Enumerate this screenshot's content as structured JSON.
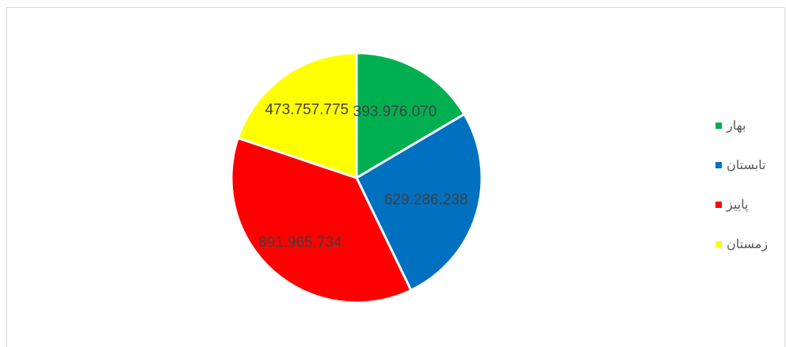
{
  "chart_data": {
    "type": "pie",
    "title": "",
    "categories": [
      "بهار",
      "تابستان",
      "پاییز",
      "زمستان"
    ],
    "values": [
      393976070,
      629286238,
      891965734,
      473757775
    ],
    "data_labels": [
      "393.976.070",
      "629.286.238",
      "891.965.734",
      "473.757.775"
    ],
    "colors": [
      "#00b050",
      "#0070c0",
      "#ff0000",
      "#ffff00"
    ],
    "legend_position": "right",
    "start_angle": "12 o'clock, clockwise"
  }
}
